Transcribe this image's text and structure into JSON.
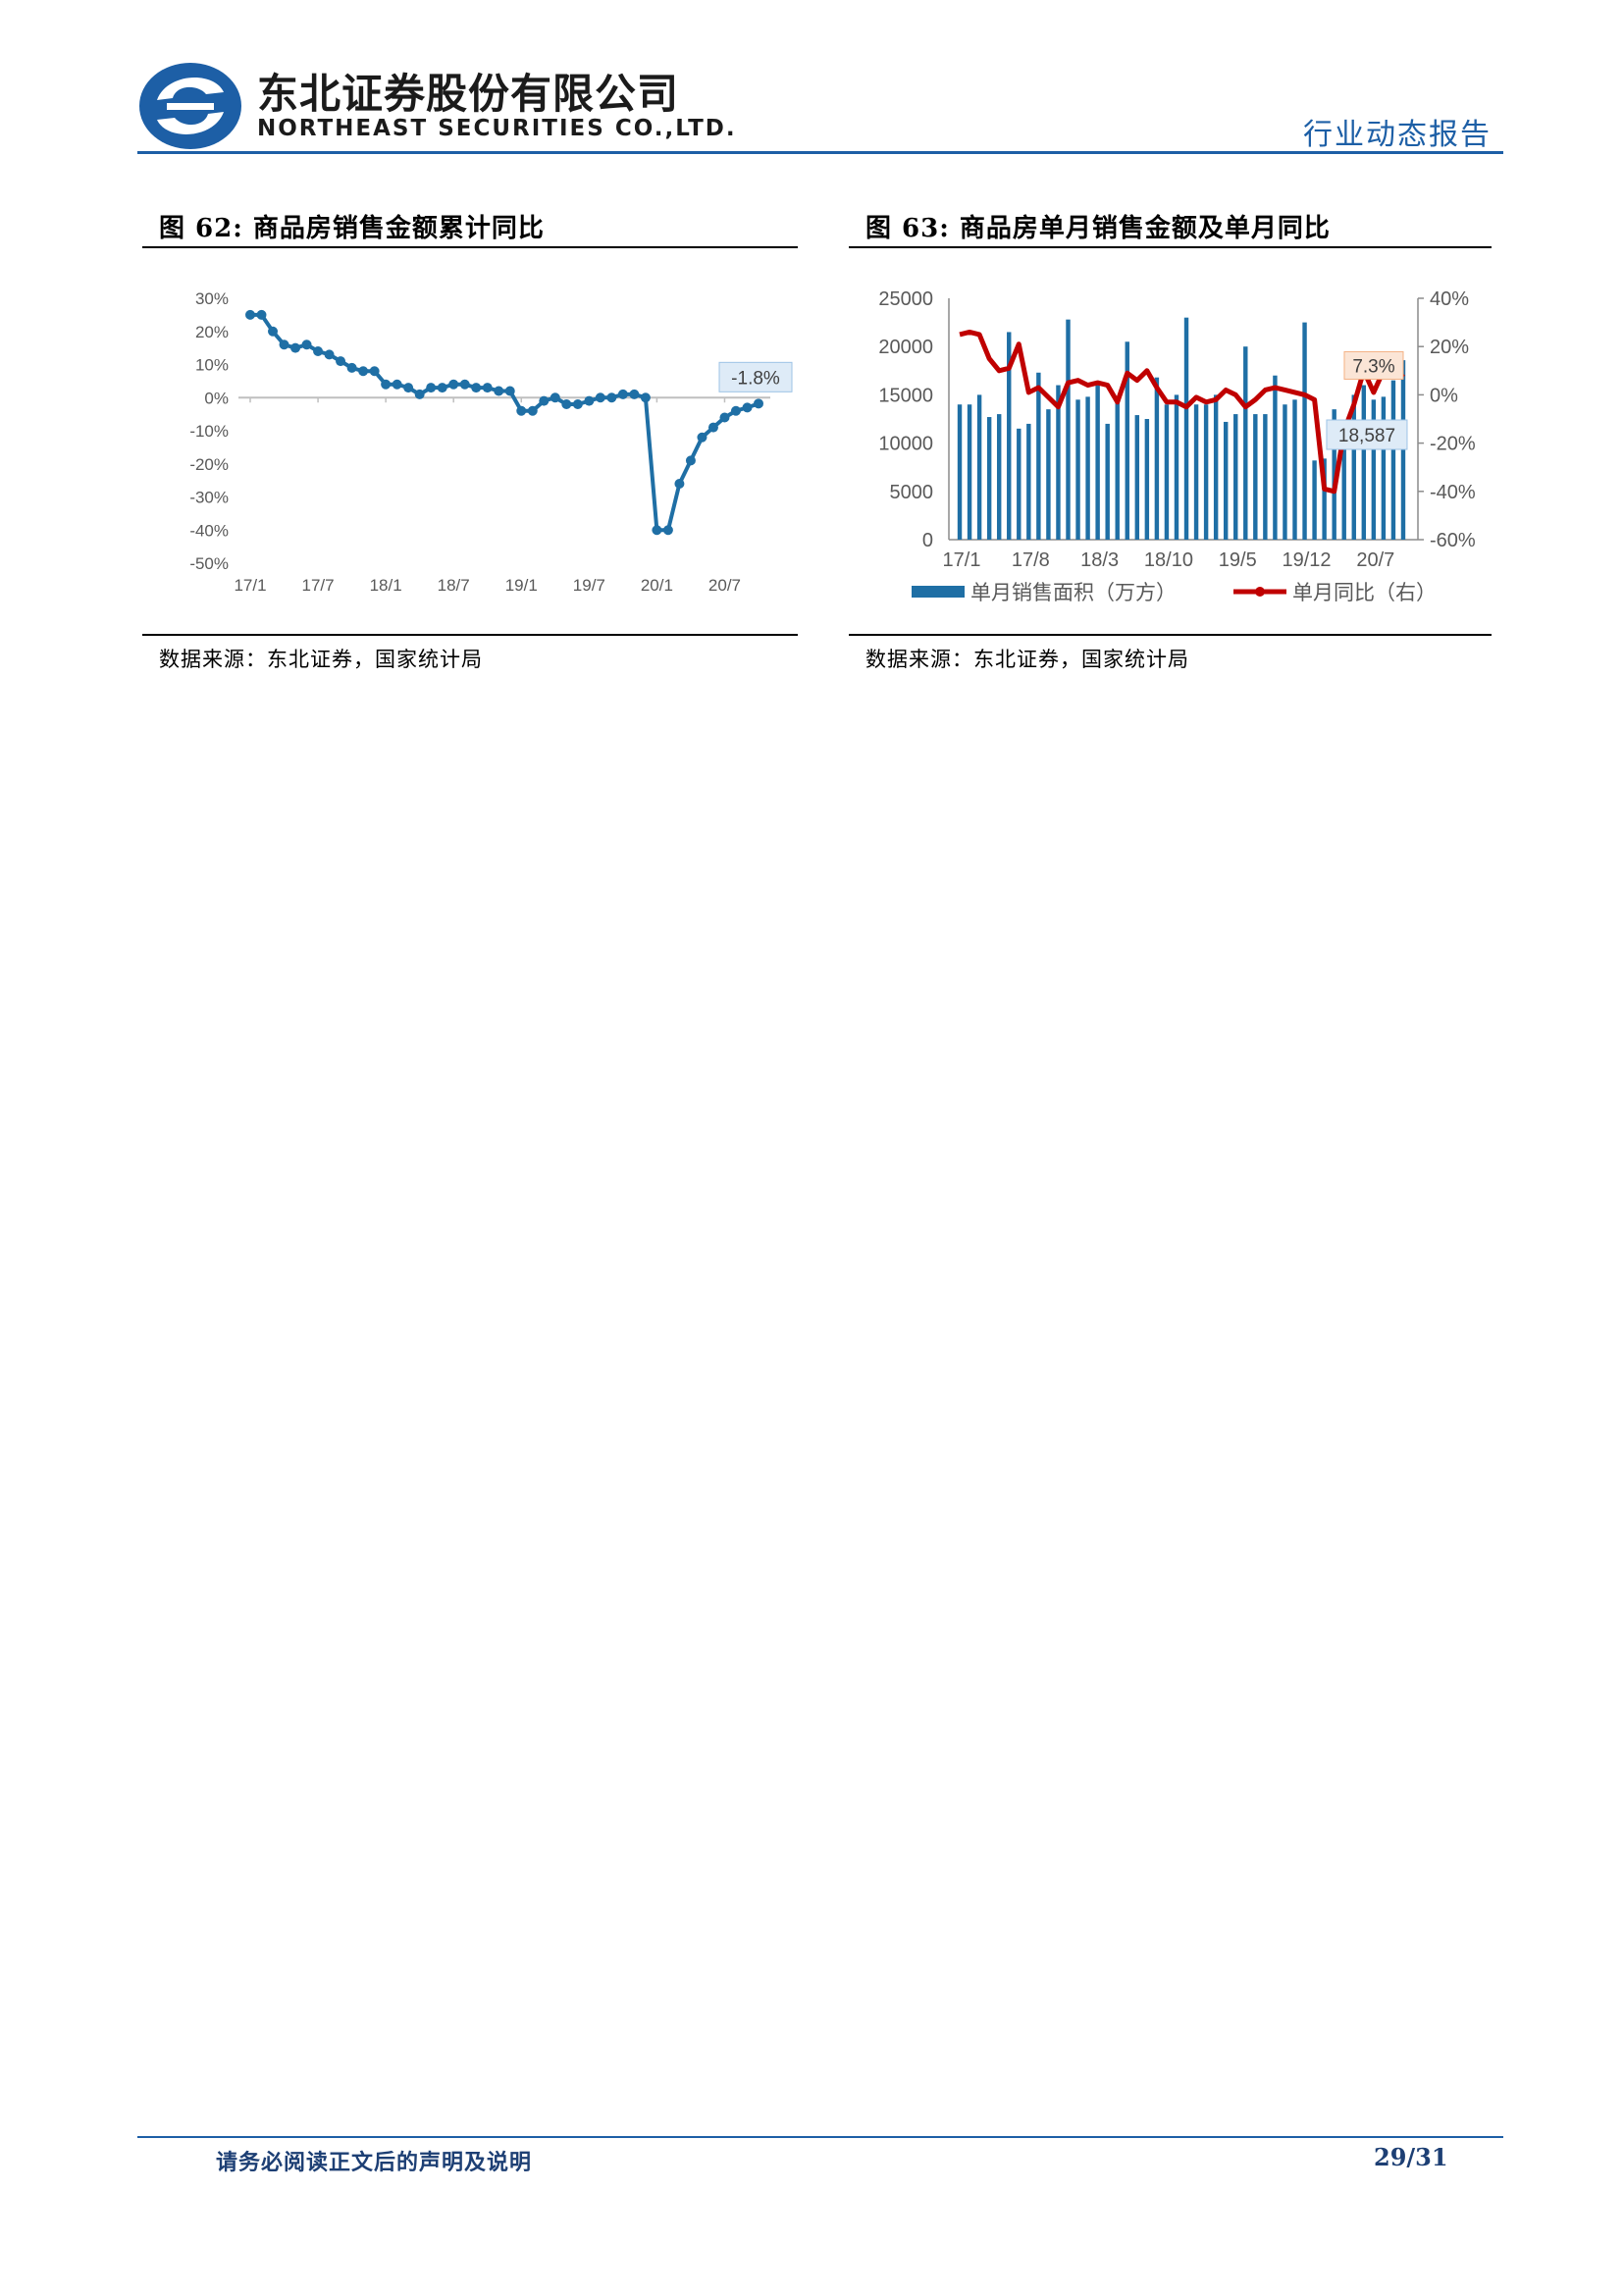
{
  "header": {
    "company_cn": "东北证券股份有限公司",
    "company_en": "NORTHEAST SECURITIES CO.,LTD.",
    "report_type": "行业动态报告",
    "brand_color": "#1d5fa6"
  },
  "figures": {
    "fig62": {
      "title": "图 62:  商品房销售金额累计同比",
      "source": "数据来源：东北证券，国家统计局",
      "last_label": "-1.8%"
    },
    "fig63": {
      "title": "图 63:  商品房单月销售金额及单月同比",
      "source": "数据来源：东北证券，国家统计局",
      "label_bar": "18,587",
      "label_line": "7.3%",
      "legend_bar": "单月销售面积（万方）",
      "legend_line": "单月同比（右）"
    }
  },
  "chart_data": [
    {
      "type": "line",
      "ylim": [
        -50,
        30
      ],
      "yticks": [
        "30%",
        "20%",
        "10%",
        "0%",
        "-10%",
        "-20%",
        "-30%",
        "-40%",
        "-50%"
      ],
      "xtick_labels": [
        "17/1",
        "17/7",
        "18/1",
        "18/7",
        "19/1",
        "19/7",
        "20/1",
        "20/7"
      ],
      "color": "#1f6fa5",
      "series": [
        {
          "values": [
            25,
            25,
            20,
            16,
            15,
            16,
            14,
            13,
            11,
            9,
            8,
            8,
            4,
            4,
            3,
            1,
            3,
            3,
            4,
            4,
            3,
            3,
            2,
            2,
            -4,
            -4,
            -1,
            0,
            -2,
            -2,
            -1,
            0,
            0,
            1,
            1,
            0,
            -40,
            -40,
            -26,
            -19,
            -12,
            -9,
            -6,
            -4,
            -3,
            -1.8
          ]
        }
      ]
    },
    {
      "type": "bar",
      "ylim": [
        0,
        25000
      ],
      "ylim_right": [
        -60,
        40
      ],
      "yticks": [
        "25000",
        "20000",
        "15000",
        "10000",
        "5000",
        "0"
      ],
      "yticks_right": [
        "40%",
        "20%",
        "0%",
        "-20%",
        "-40%",
        "-60%"
      ],
      "xtick_labels": [
        "17/1",
        "17/8",
        "18/3",
        "18/10",
        "19/5",
        "19/12",
        "20/7"
      ],
      "bar_color": "#1f6fa5",
      "line_color": "#c00000",
      "series": [
        {
          "name": "单月销售面积（万方）",
          "axis": "left",
          "values": [
            14000,
            14000,
            15000,
            12700,
            13000,
            21500,
            11500,
            12000,
            17300,
            13500,
            16000,
            22800,
            14500,
            14800,
            16000,
            12000,
            14200,
            20500,
            12900,
            12500,
            16800,
            14000,
            15000,
            23000,
            14000,
            14000,
            15000,
            12200,
            13000,
            20000,
            13000,
            13000,
            17000,
            14000,
            14500,
            22500,
            8200,
            8400,
            13500,
            12000,
            15000,
            16000,
            14500,
            14800,
            16500,
            18587
          ]
        },
        {
          "name": "单月同比（右）",
          "axis": "right",
          "values": [
            25,
            26,
            25,
            15,
            10,
            11,
            21,
            1,
            3,
            -1,
            -5,
            5,
            6,
            4,
            5,
            4,
            -3,
            9,
            6,
            10,
            3,
            -3,
            -3,
            -5,
            -1,
            -3,
            -2,
            2,
            0,
            -5,
            -2,
            2,
            3,
            2,
            1,
            0,
            -2,
            -39,
            -40,
            -15,
            -4,
            10,
            1,
            10,
            12,
            7.3
          ]
        }
      ]
    }
  ],
  "footer": {
    "note": "请务必阅读正文后的声明及说明",
    "page": "29/31"
  }
}
